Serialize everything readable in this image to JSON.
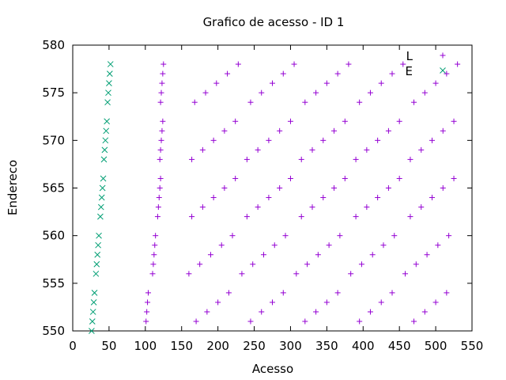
{
  "chart_data": {
    "type": "scatter",
    "title": "Grafico de acesso - ID 1",
    "xlabel": "Acesso",
    "ylabel": "Endereco",
    "xlim": [
      0,
      550
    ],
    "ylim": [
      550,
      580
    ],
    "xticks": [
      0,
      50,
      100,
      150,
      200,
      250,
      300,
      350,
      400,
      450,
      500,
      550
    ],
    "yticks": [
      550,
      555,
      560,
      565,
      570,
      575,
      580
    ],
    "grid": false,
    "legend_position": "top-right",
    "series": [
      {
        "name": "L",
        "marker": "plus",
        "color": "#9400d3",
        "points": [
          [
            101,
            551
          ],
          [
            102,
            552
          ],
          [
            103,
            553
          ],
          [
            104,
            554
          ],
          [
            110,
            556
          ],
          [
            111,
            557
          ],
          [
            112,
            558
          ],
          [
            113,
            559
          ],
          [
            114,
            560
          ],
          [
            117,
            562
          ],
          [
            118,
            563
          ],
          [
            119,
            564
          ],
          [
            120,
            565
          ],
          [
            121,
            566
          ],
          [
            120,
            568
          ],
          [
            121,
            569
          ],
          [
            122,
            570
          ],
          [
            123,
            571
          ],
          [
            124,
            572
          ],
          [
            121,
            574
          ],
          [
            122,
            575
          ],
          [
            123,
            576
          ],
          [
            124,
            577
          ],
          [
            125,
            578
          ],
          [
            170,
            551
          ],
          [
            185,
            552
          ],
          [
            200,
            553
          ],
          [
            215,
            554
          ],
          [
            160,
            556
          ],
          [
            175,
            557
          ],
          [
            190,
            558
          ],
          [
            205,
            559
          ],
          [
            220,
            560
          ],
          [
            164,
            562
          ],
          [
            179,
            563
          ],
          [
            194,
            564
          ],
          [
            209,
            565
          ],
          [
            224,
            566
          ],
          [
            164,
            568
          ],
          [
            179,
            569
          ],
          [
            194,
            570
          ],
          [
            209,
            571
          ],
          [
            224,
            572
          ],
          [
            168,
            574
          ],
          [
            183,
            575
          ],
          [
            198,
            576
          ],
          [
            213,
            577
          ],
          [
            228,
            578
          ],
          [
            245,
            551
          ],
          [
            260,
            552
          ],
          [
            275,
            553
          ],
          [
            290,
            554
          ],
          [
            233,
            556
          ],
          [
            248,
            557
          ],
          [
            263,
            558
          ],
          [
            278,
            559
          ],
          [
            293,
            560
          ],
          [
            240,
            562
          ],
          [
            255,
            563
          ],
          [
            270,
            564
          ],
          [
            285,
            565
          ],
          [
            300,
            566
          ],
          [
            240,
            568
          ],
          [
            255,
            569
          ],
          [
            270,
            570
          ],
          [
            285,
            571
          ],
          [
            300,
            572
          ],
          [
            245,
            574
          ],
          [
            260,
            575
          ],
          [
            275,
            576
          ],
          [
            290,
            577
          ],
          [
            305,
            578
          ],
          [
            320,
            551
          ],
          [
            335,
            552
          ],
          [
            350,
            553
          ],
          [
            365,
            554
          ],
          [
            308,
            556
          ],
          [
            323,
            557
          ],
          [
            338,
            558
          ],
          [
            353,
            559
          ],
          [
            368,
            560
          ],
          [
            315,
            562
          ],
          [
            330,
            563
          ],
          [
            345,
            564
          ],
          [
            360,
            565
          ],
          [
            375,
            566
          ],
          [
            315,
            568
          ],
          [
            330,
            569
          ],
          [
            345,
            570
          ],
          [
            360,
            571
          ],
          [
            375,
            572
          ],
          [
            320,
            574
          ],
          [
            335,
            575
          ],
          [
            350,
            576
          ],
          [
            365,
            577
          ],
          [
            380,
            578
          ],
          [
            395,
            551
          ],
          [
            410,
            552
          ],
          [
            425,
            553
          ],
          [
            440,
            554
          ],
          [
            383,
            556
          ],
          [
            398,
            557
          ],
          [
            413,
            558
          ],
          [
            428,
            559
          ],
          [
            443,
            560
          ],
          [
            390,
            562
          ],
          [
            405,
            563
          ],
          [
            420,
            564
          ],
          [
            435,
            565
          ],
          [
            450,
            566
          ],
          [
            390,
            568
          ],
          [
            405,
            569
          ],
          [
            420,
            570
          ],
          [
            435,
            571
          ],
          [
            450,
            572
          ],
          [
            395,
            574
          ],
          [
            410,
            575
          ],
          [
            425,
            576
          ],
          [
            440,
            577
          ],
          [
            455,
            578
          ],
          [
            470,
            551
          ],
          [
            485,
            552
          ],
          [
            500,
            553
          ],
          [
            515,
            554
          ],
          [
            458,
            556
          ],
          [
            473,
            557
          ],
          [
            488,
            558
          ],
          [
            503,
            559
          ],
          [
            518,
            560
          ],
          [
            465,
            562
          ],
          [
            480,
            563
          ],
          [
            495,
            564
          ],
          [
            510,
            565
          ],
          [
            525,
            566
          ],
          [
            465,
            568
          ],
          [
            480,
            569
          ],
          [
            495,
            570
          ],
          [
            510,
            571
          ],
          [
            525,
            572
          ],
          [
            470,
            574
          ],
          [
            485,
            575
          ],
          [
            500,
            576
          ],
          [
            515,
            577
          ],
          [
            530,
            578
          ]
        ]
      },
      {
        "name": "E",
        "marker": "cross",
        "color": "#009e73",
        "points": [
          [
            26,
            550
          ],
          [
            27,
            551
          ],
          [
            28,
            552
          ],
          [
            29,
            553
          ],
          [
            30,
            554
          ],
          [
            32,
            556
          ],
          [
            33,
            557
          ],
          [
            34,
            558
          ],
          [
            35,
            559
          ],
          [
            36,
            560
          ],
          [
            38,
            562
          ],
          [
            39,
            563
          ],
          [
            40,
            564
          ],
          [
            41,
            565
          ],
          [
            42,
            566
          ],
          [
            43,
            568
          ],
          [
            44,
            569
          ],
          [
            45,
            570
          ],
          [
            46,
            571
          ],
          [
            47,
            572
          ],
          [
            48,
            574
          ],
          [
            49,
            575
          ],
          [
            50,
            576
          ],
          [
            51,
            577
          ],
          [
            52,
            578
          ]
        ]
      }
    ]
  }
}
